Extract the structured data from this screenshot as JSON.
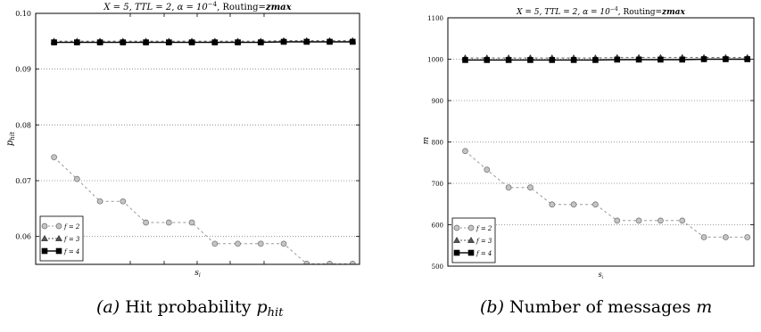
{
  "charts": [
    {
      "id": "hit",
      "title": {
        "pre": "X = 5, TTL = 2, α = 10",
        "sup": "−4",
        "mid": ", Routing=",
        "em": "zmax"
      },
      "ylabel": {
        "sym": "p",
        "sub": "hit"
      },
      "xlabel": {
        "sym": "s",
        "sub": "i"
      },
      "yticks": [
        "0.06",
        "0.07",
        "0.08",
        "0.09",
        "0.10"
      ],
      "caption": {
        "label": "(a)",
        "text": " Hit probability ",
        "sym": "p",
        "sub": "hit"
      },
      "legend": [
        {
          "label": "f = 2",
          "marker": "circle",
          "color": "#9a9a9a",
          "dash": true
        },
        {
          "label": "f = 3",
          "marker": "triangle",
          "color": "#555555",
          "dash": true
        },
        {
          "label": "f = 4",
          "marker": "square",
          "color": "#000000",
          "dash": false
        }
      ]
    },
    {
      "id": "msgs",
      "title": {
        "pre": "X = 5, TTL = 2, α = 10",
        "sup": "−4",
        "mid": ", Routing=",
        "em": "zmax"
      },
      "ylabel": {
        "sym": "m",
        "sub": ""
      },
      "xlabel": {
        "sym": "s",
        "sub": "i"
      },
      "yticks": [
        "500",
        "600",
        "700",
        "800",
        "900",
        "1000",
        "1100"
      ],
      "caption": {
        "label": "(b)",
        "text": " Number of messages ",
        "sym": "m",
        "sub": ""
      },
      "legend": [
        {
          "label": "f = 2",
          "marker": "circle",
          "color": "#9a9a9a",
          "dash": true
        },
        {
          "label": "f = 3",
          "marker": "triangle",
          "color": "#555555",
          "dash": true
        },
        {
          "label": "f = 4",
          "marker": "square",
          "color": "#000000",
          "dash": false
        }
      ]
    }
  ],
  "chart_data": [
    {
      "type": "line",
      "title": "X = 5, TTL = 2, α = 10^-4, Routing=zmax",
      "xlabel": "s_i",
      "ylabel": "p_hit",
      "ylim": [
        0.055,
        0.1
      ],
      "grid": true,
      "legend_position": "bottom-left",
      "x": [
        1,
        2,
        3,
        4,
        5,
        6,
        7,
        8,
        9,
        10,
        11,
        12,
        13,
        14
      ],
      "series": [
        {
          "name": "f = 2",
          "values": [
            0.0742,
            0.0703,
            0.0663,
            0.0663,
            0.0625,
            0.0625,
            0.0625,
            0.0587,
            0.0587,
            0.0587,
            0.0587,
            0.0551,
            0.0551,
            0.0551
          ]
        },
        {
          "name": "f = 3",
          "values": [
            0.095,
            0.095,
            0.095,
            0.095,
            0.095,
            0.095,
            0.095,
            0.095,
            0.095,
            0.095,
            0.0951,
            0.0951,
            0.0951,
            0.0951
          ]
        },
        {
          "name": "f = 4",
          "values": [
            0.0948,
            0.0948,
            0.0948,
            0.0948,
            0.0948,
            0.0948,
            0.0948,
            0.0948,
            0.0948,
            0.0948,
            0.0949,
            0.0949,
            0.0949,
            0.0949
          ]
        }
      ]
    },
    {
      "type": "line",
      "title": "X = 5, TTL = 2, α = 10^-4, Routing=zmax",
      "xlabel": "s_i",
      "ylabel": "m",
      "ylim": [
        500,
        1100
      ],
      "grid": true,
      "legend_position": "bottom-left",
      "x": [
        1,
        2,
        3,
        4,
        5,
        6,
        7,
        8,
        9,
        10,
        11,
        12,
        13,
        14
      ],
      "series": [
        {
          "name": "f = 2",
          "values": [
            778,
            733,
            690,
            690,
            649,
            649,
            649,
            610,
            610,
            610,
            610,
            570,
            570,
            570
          ]
        },
        {
          "name": "f = 3",
          "values": [
            1003,
            1003,
            1003,
            1003,
            1003,
            1003,
            1003,
            1004,
            1004,
            1004,
            1004,
            1004,
            1004,
            1004
          ]
        },
        {
          "name": "f = 4",
          "values": [
            998,
            998,
            998,
            998,
            998,
            998,
            998,
            999,
            999,
            999,
            999,
            1000,
            1000,
            1000
          ]
        }
      ]
    }
  ]
}
